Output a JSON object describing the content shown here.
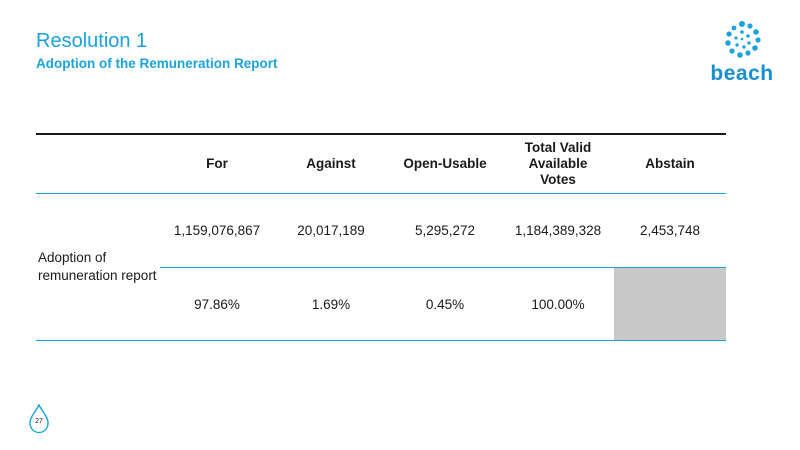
{
  "header": {
    "title": "Resolution 1",
    "subtitle": "Adoption of the Remuneration Report"
  },
  "logo": {
    "text": "beach",
    "icon": "beach-swirl-icon",
    "color": "#1a8fd0"
  },
  "table": {
    "columns": [
      "For",
      "Against",
      "Open-Usable",
      "Total Valid Available Votes",
      "Abstain"
    ],
    "row_label": "Adoption of remuneration report",
    "votes": [
      "1,159,076,867",
      "20,017,189",
      "5,295,272",
      "1,184,389,328",
      "2,453,748"
    ],
    "percentages": [
      "97.86%",
      "1.69%",
      "0.45%",
      "100.00%",
      ""
    ]
  },
  "footer": {
    "page_number": "27"
  },
  "colors": {
    "accent": "#1aa3dc",
    "shade": "#c8c8c8"
  }
}
